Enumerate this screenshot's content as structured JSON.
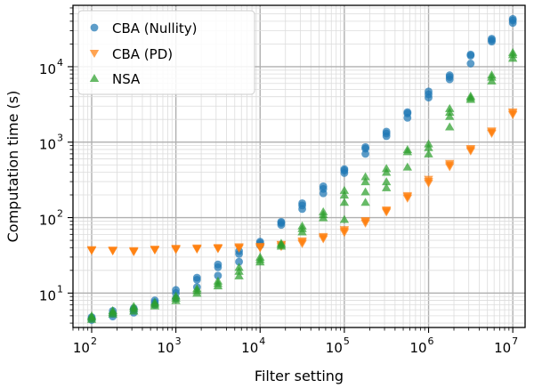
{
  "chart_data": {
    "type": "scatter",
    "title": "",
    "xlabel": "Filter setting",
    "ylabel": "Computation time (s)",
    "xscale": "log",
    "yscale": "log",
    "xlim": [
      60,
      14000000
    ],
    "ylim": [
      3.5,
      65000
    ],
    "grid": true,
    "legend_position": "top-left",
    "x_ticks": [
      {
        "value": 100,
        "base": "10",
        "exp": "2"
      },
      {
        "value": 1000,
        "base": "10",
        "exp": "3"
      },
      {
        "value": 10000,
        "base": "10",
        "exp": "4"
      },
      {
        "value": 100000,
        "base": "10",
        "exp": "5"
      },
      {
        "value": 1000000,
        "base": "10",
        "exp": "6"
      },
      {
        "value": 10000000,
        "base": "10",
        "exp": "7"
      }
    ],
    "y_ticks": [
      {
        "value": 10,
        "base": "10",
        "exp": "1"
      },
      {
        "value": 100,
        "base": "10",
        "exp": "2"
      },
      {
        "value": 1000,
        "base": "10",
        "exp": "3"
      },
      {
        "value": 10000,
        "base": "10",
        "exp": "4"
      }
    ],
    "series": [
      {
        "name": "CBA (Nullity)",
        "color": "#1f77b4",
        "marker": "circle",
        "points": [
          [
            100,
            4.4
          ],
          [
            100,
            4.6
          ],
          [
            100,
            4.8
          ],
          [
            178,
            4.9
          ],
          [
            178,
            5.3
          ],
          [
            178,
            5.8
          ],
          [
            316,
            5.5
          ],
          [
            316,
            6.0
          ],
          [
            316,
            6.3
          ],
          [
            562,
            7.0
          ],
          [
            562,
            7.5
          ],
          [
            562,
            8.0
          ],
          [
            1000,
            8.5
          ],
          [
            1000,
            10.0
          ],
          [
            1000,
            11.0
          ],
          [
            1780,
            12.0
          ],
          [
            1780,
            15.0
          ],
          [
            1780,
            16.0
          ],
          [
            3160,
            17.0
          ],
          [
            3160,
            22.0
          ],
          [
            3160,
            24.0
          ],
          [
            5620,
            26.0
          ],
          [
            5620,
            33.0
          ],
          [
            5620,
            36.0
          ],
          [
            10000,
            43.0
          ],
          [
            10000,
            46.0
          ],
          [
            10000,
            48.0
          ],
          [
            17800,
            80.0
          ],
          [
            17800,
            85.0
          ],
          [
            17800,
            88.0
          ],
          [
            31600,
            130.0
          ],
          [
            31600,
            145.0
          ],
          [
            31600,
            155.0
          ],
          [
            56200,
            210.0
          ],
          [
            56200,
            240.0
          ],
          [
            56200,
            260.0
          ],
          [
            100000,
            390.0
          ],
          [
            100000,
            420.0
          ],
          [
            100000,
            440.0
          ],
          [
            178000,
            700.0
          ],
          [
            178000,
            820.0
          ],
          [
            178000,
            860.0
          ],
          [
            316000,
            1200.0
          ],
          [
            316000,
            1300.0
          ],
          [
            316000,
            1380.0
          ],
          [
            562000,
            2100.0
          ],
          [
            562000,
            2400.0
          ],
          [
            562000,
            2500.0
          ],
          [
            1000000,
            3900.0
          ],
          [
            1000000,
            4300.0
          ],
          [
            1000000,
            4700.0
          ],
          [
            1780000,
            6800.0
          ],
          [
            1780000,
            7300.0
          ],
          [
            1780000,
            7700.0
          ],
          [
            3160000,
            11000.0
          ],
          [
            3160000,
            14000.0
          ],
          [
            3160000,
            14500.0
          ],
          [
            5620000,
            21500.0
          ],
          [
            5620000,
            22500.0
          ],
          [
            5620000,
            23500.0
          ],
          [
            10000000,
            38000.0
          ],
          [
            10000000,
            41000.0
          ],
          [
            10000000,
            43000.0
          ]
        ]
      },
      {
        "name": "CBA (PD)",
        "color": "#ff7f0e",
        "marker": "triangle-down",
        "points": [
          [
            100,
            36.5
          ],
          [
            100,
            37.0
          ],
          [
            100,
            37.5
          ],
          [
            178,
            36.0
          ],
          [
            178,
            36.5
          ],
          [
            178,
            37.0
          ],
          [
            316,
            35.0
          ],
          [
            316,
            35.8
          ],
          [
            316,
            36.4
          ],
          [
            562,
            37.0
          ],
          [
            562,
            37.5
          ],
          [
            562,
            38.0
          ],
          [
            1000,
            37.5
          ],
          [
            1000,
            38.2
          ],
          [
            1000,
            39.0
          ],
          [
            1780,
            38.0
          ],
          [
            1780,
            38.8
          ],
          [
            1780,
            39.5
          ],
          [
            3160,
            38.5
          ],
          [
            3160,
            39.2
          ],
          [
            3160,
            40.0
          ],
          [
            5620,
            39.0
          ],
          [
            5620,
            40.0
          ],
          [
            5620,
            41.0
          ],
          [
            10000,
            39.5
          ],
          [
            10000,
            40.5
          ],
          [
            10000,
            41.5
          ],
          [
            17800,
            41.0
          ],
          [
            17800,
            43.0
          ],
          [
            17800,
            44.0
          ],
          [
            31600,
            45.0
          ],
          [
            31600,
            47.0
          ],
          [
            31600,
            49.0
          ],
          [
            56200,
            52.0
          ],
          [
            56200,
            54.0
          ],
          [
            56200,
            56.0
          ],
          [
            100000,
            63.0
          ],
          [
            100000,
            66.0
          ],
          [
            100000,
            69.0
          ],
          [
            178000,
            84.0
          ],
          [
            178000,
            88.0
          ],
          [
            178000,
            91.0
          ],
          [
            316000,
            118.0
          ],
          [
            316000,
            122.0
          ],
          [
            316000,
            126.0
          ],
          [
            562000,
            180.0
          ],
          [
            562000,
            188.0
          ],
          [
            562000,
            195.0
          ],
          [
            1000000,
            285.0
          ],
          [
            1000000,
            300.0
          ],
          [
            1000000,
            320.0
          ],
          [
            1780000,
            470.0
          ],
          [
            1780000,
            495.0
          ],
          [
            1780000,
            520.0
          ],
          [
            3160000,
            760.0
          ],
          [
            3160000,
            790.0
          ],
          [
            3160000,
            820.0
          ],
          [
            5620000,
            1300.0
          ],
          [
            5620000,
            1350.0
          ],
          [
            5620000,
            1400.0
          ],
          [
            10000000,
            2300.0
          ],
          [
            10000000,
            2400.0
          ],
          [
            10000000,
            2500.0
          ]
        ]
      },
      {
        "name": "NSA",
        "color": "#2ca02c",
        "marker": "triangle-up",
        "points": [
          [
            100,
            4.5
          ],
          [
            100,
            4.8
          ],
          [
            100,
            5.0
          ],
          [
            178,
            5.3
          ],
          [
            178,
            5.6
          ],
          [
            178,
            5.9
          ],
          [
            316,
            5.8
          ],
          [
            316,
            6.3
          ],
          [
            316,
            6.7
          ],
          [
            562,
            6.8
          ],
          [
            562,
            7.2
          ],
          [
            562,
            7.6
          ],
          [
            1000,
            8.0
          ],
          [
            1000,
            8.6
          ],
          [
            1000,
            9.2
          ],
          [
            1780,
            10.0
          ],
          [
            1780,
            10.8
          ],
          [
            1780,
            11.5
          ],
          [
            3160,
            12.5
          ],
          [
            3160,
            13.5
          ],
          [
            3160,
            14.5
          ],
          [
            5620,
            17.0
          ],
          [
            5620,
            19.5
          ],
          [
            5620,
            22.0
          ],
          [
            10000,
            26.0
          ],
          [
            10000,
            28.0
          ],
          [
            10000,
            30.0
          ],
          [
            17800,
            42.0
          ],
          [
            17800,
            44.0
          ],
          [
            17800,
            46.0
          ],
          [
            31600,
            65.0
          ],
          [
            31600,
            72.0
          ],
          [
            31600,
            78.0
          ],
          [
            56200,
            100.0
          ],
          [
            56200,
            110.0
          ],
          [
            56200,
            120.0
          ],
          [
            100000,
            95.0
          ],
          [
            100000,
            160.0
          ],
          [
            100000,
            200.0
          ],
          [
            100000,
            230.0
          ],
          [
            178000,
            160.0
          ],
          [
            178000,
            220.0
          ],
          [
            178000,
            300.0
          ],
          [
            178000,
            350.0
          ],
          [
            316000,
            250.0
          ],
          [
            316000,
            300.0
          ],
          [
            316000,
            400.0
          ],
          [
            316000,
            450.0
          ],
          [
            562000,
            470.0
          ],
          [
            562000,
            750.0
          ],
          [
            562000,
            800.0
          ],
          [
            1000000,
            700.0
          ],
          [
            1000000,
            850.0
          ],
          [
            1000000,
            950.0
          ],
          [
            1780000,
            1600.0
          ],
          [
            1780000,
            2200.0
          ],
          [
            1780000,
            2500.0
          ],
          [
            1780000,
            2800.0
          ],
          [
            3160000,
            3700.0
          ],
          [
            3160000,
            3900.0
          ],
          [
            3160000,
            4100.0
          ],
          [
            5620000,
            6500.0
          ],
          [
            5620000,
            7300.0
          ],
          [
            5620000,
            7800.0
          ],
          [
            10000000,
            13000.0
          ],
          [
            10000000,
            14500.0
          ],
          [
            10000000,
            15500.0
          ]
        ]
      }
    ]
  }
}
